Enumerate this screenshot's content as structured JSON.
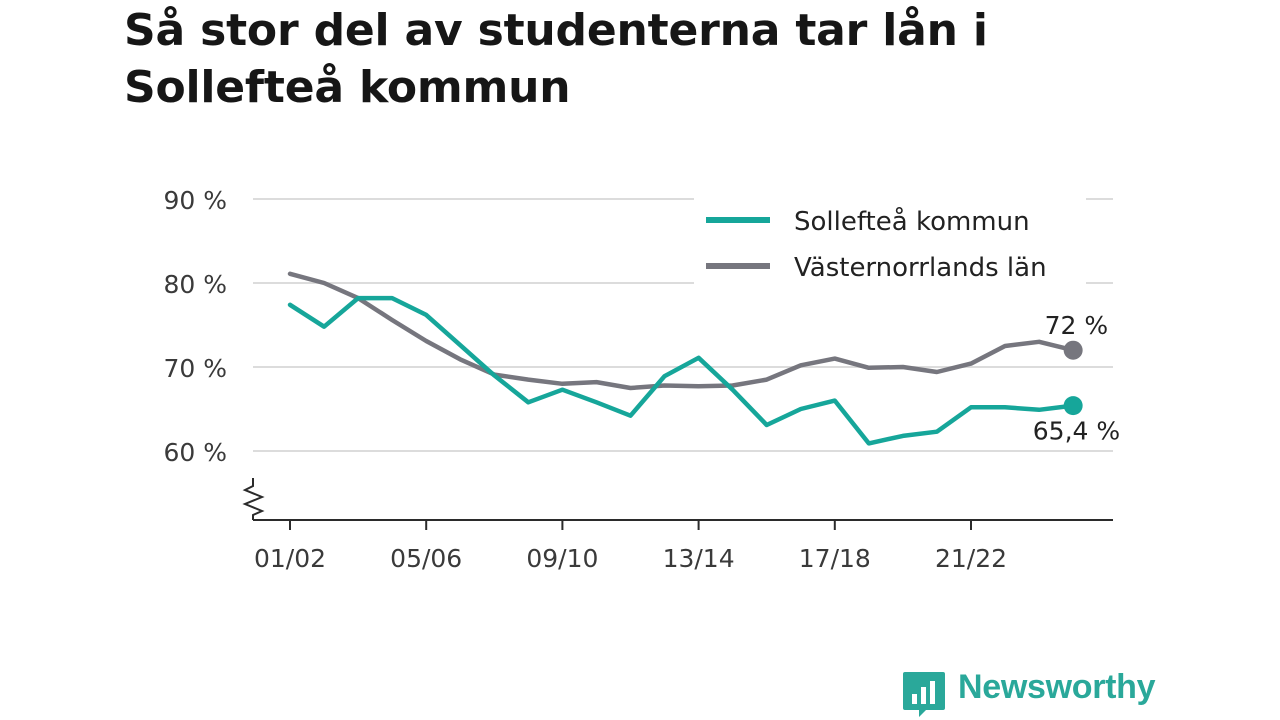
{
  "title": "Så stor del av studenterna tar lån i Sollefteå kommun",
  "brand": {
    "name": "Newsworthy",
    "color": "#2aa89a"
  },
  "chart_data": {
    "type": "line",
    "title": "Så stor del av studenterna tar lån i Sollefteå kommun",
    "xlabel": "",
    "ylabel": "",
    "ylim": [
      52,
      90
    ],
    "y_ticks": [
      60,
      70,
      80,
      90
    ],
    "y_tick_labels": [
      "60 %",
      "70 %",
      "80 %",
      "90 %"
    ],
    "y_axis_break": true,
    "x_tick_labels": [
      "01/02",
      "05/06",
      "09/10",
      "13/14",
      "17/18",
      "21/22"
    ],
    "x_tick_positions": [
      0,
      4,
      8,
      12,
      16,
      20
    ],
    "grid": true,
    "legend_position": "top-right",
    "series": [
      {
        "name": "Sollefteå kommun",
        "color": "#16a69a",
        "values": [
          77.4,
          74.8,
          78.2,
          78.2,
          76.2,
          72.6,
          69.0,
          65.8,
          67.3,
          65.8,
          64.2,
          68.9,
          71.1,
          67.3,
          63.1,
          65.0,
          66.0,
          60.9,
          61.8,
          62.3,
          65.2,
          65.2,
          64.9,
          65.4
        ],
        "end_label": "65,4 %"
      },
      {
        "name": "Västernorrlands län",
        "color": "#76767e",
        "values": [
          81.1,
          80.0,
          78.2,
          75.6,
          73.1,
          70.9,
          69.1,
          68.5,
          68.0,
          68.2,
          67.5,
          67.8,
          67.7,
          67.8,
          68.5,
          70.2,
          71.0,
          69.9,
          70.0,
          69.4,
          70.4,
          72.5,
          73.0,
          72.0
        ],
        "end_label": "72 %"
      }
    ]
  }
}
